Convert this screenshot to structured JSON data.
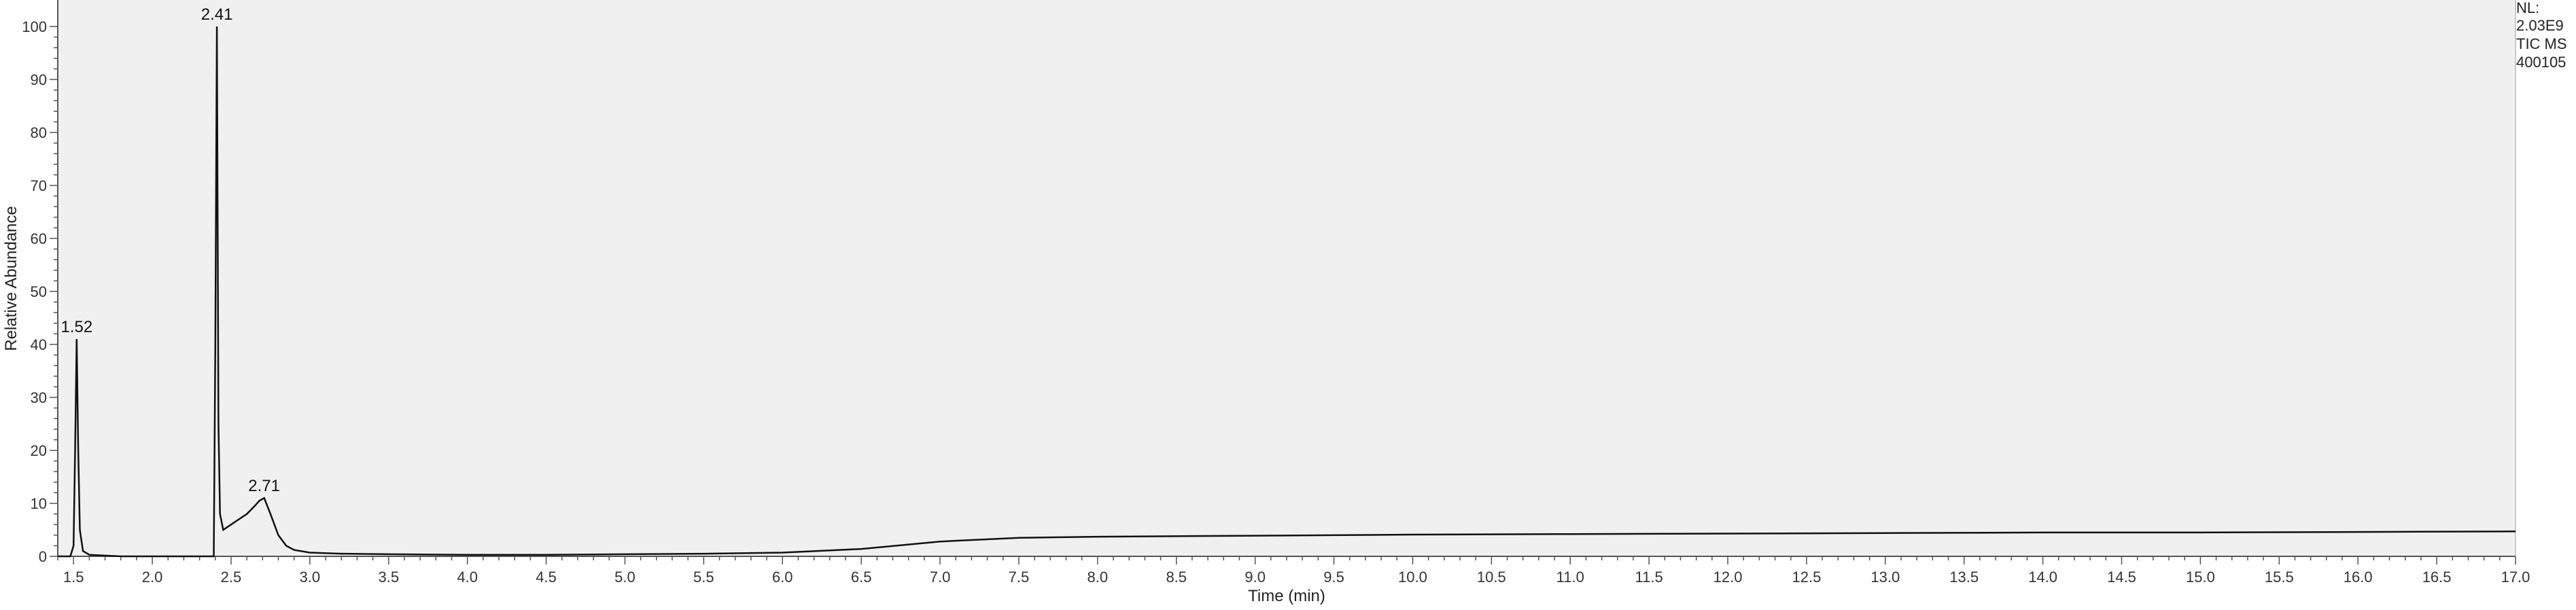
{
  "chart_data": {
    "type": "line",
    "xlabel": "Time (min)",
    "ylabel": "Relative Abundance",
    "xlim": [
      1.4,
      17.0
    ],
    "ylim": [
      0,
      105
    ],
    "x_ticks": [
      "1.5",
      "2.0",
      "2.5",
      "3.0",
      "3.5",
      "4.0",
      "4.5",
      "5.0",
      "5.5",
      "6.0",
      "6.5",
      "7.0",
      "7.5",
      "8.0",
      "8.5",
      "9.0",
      "9.5",
      "10.0",
      "10.5",
      "11.0",
      "11.5",
      "12.0",
      "12.5",
      "13.0",
      "13.5",
      "14.0",
      "14.5",
      "15.0",
      "15.5",
      "16.0",
      "16.5",
      "17.0"
    ],
    "y_ticks": [
      "0",
      "10",
      "20",
      "30",
      "40",
      "50",
      "60",
      "70",
      "80",
      "90",
      "100"
    ],
    "peak_labels": [
      {
        "x": 1.52,
        "y": 41,
        "label": "1.52"
      },
      {
        "x": 2.41,
        "y": 100,
        "label": "2.41"
      },
      {
        "x": 2.71,
        "y": 11,
        "label": "2.71"
      }
    ],
    "info": [
      "NL:",
      "2.03E9",
      "TIC  MS",
      "400105"
    ],
    "series": [
      {
        "x": [
          1.4,
          1.48,
          1.5,
          1.51,
          1.52,
          1.53,
          1.54,
          1.56,
          1.6,
          1.8,
          2.0,
          2.2,
          2.39,
          2.4,
          2.41,
          2.42,
          2.43,
          2.45,
          2.5,
          2.55,
          2.6,
          2.65,
          2.68,
          2.71,
          2.75,
          2.8,
          2.85,
          2.9,
          3.0,
          3.2,
          3.5,
          4.0,
          4.5,
          5.0,
          5.5,
          6.0,
          6.5,
          7.0,
          7.5,
          8.0,
          9.0,
          10.0,
          11.0,
          12.0,
          13.0,
          14.0,
          15.0,
          16.0,
          17.0
        ],
        "y": [
          0,
          0,
          2,
          20,
          41,
          20,
          5,
          1,
          0.3,
          0,
          0,
          0,
          0,
          40,
          100,
          25,
          8,
          5,
          6,
          7,
          8,
          9.5,
          10.5,
          11,
          8,
          4,
          2,
          1.2,
          0.7,
          0.5,
          0.4,
          0.3,
          0.3,
          0.4,
          0.5,
          0.7,
          1.4,
          2.8,
          3.5,
          3.7,
          3.9,
          4.1,
          4.2,
          4.3,
          4.4,
          4.5,
          4.5,
          4.6,
          4.7
        ]
      }
    ]
  }
}
